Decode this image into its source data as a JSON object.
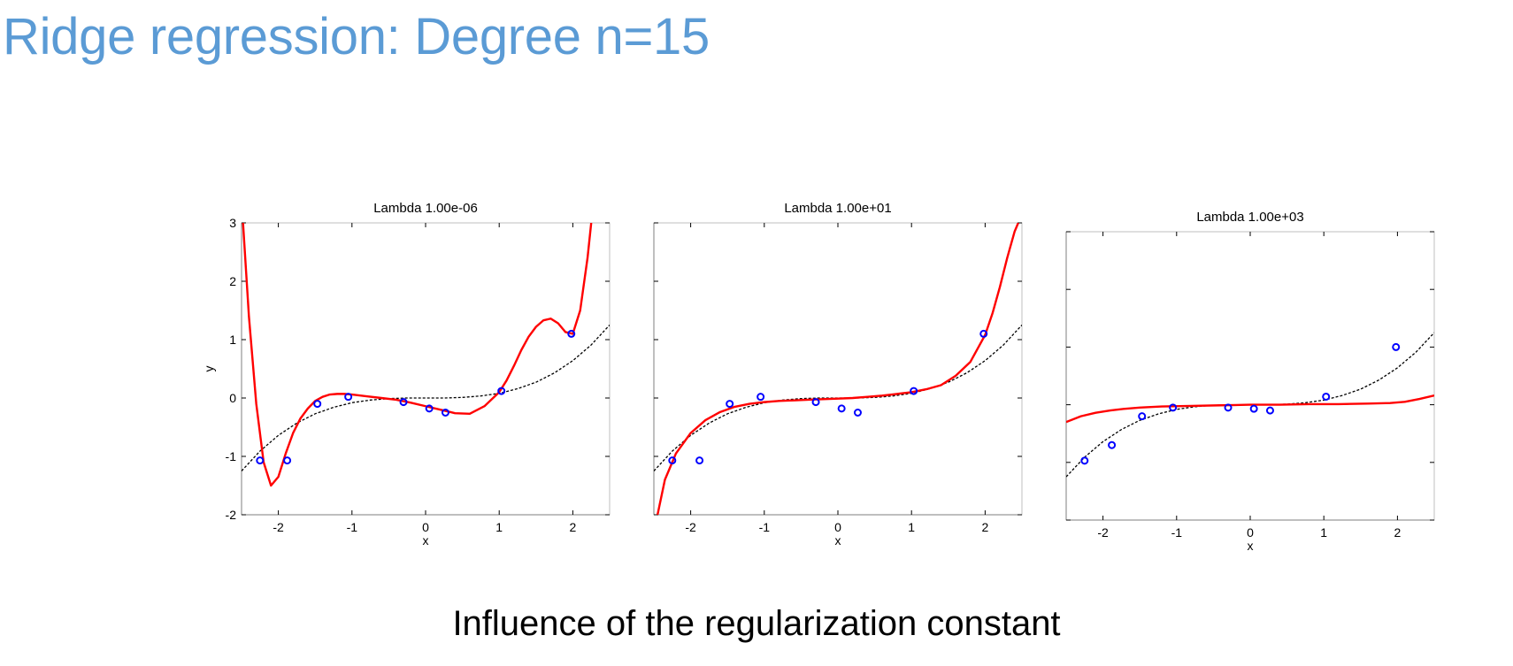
{
  "slide": {
    "title": "Ridge regression: Degree n=15",
    "caption": "Influence of the regularization constant"
  },
  "colors": {
    "title": "#5B9BD5",
    "fit_curve": "#FF0000",
    "true_curve": "#000000",
    "data_points": "#0000FF"
  },
  "chart_data": [
    {
      "type": "line",
      "title": "Lambda 1.00e-06",
      "xlabel": "x",
      "ylabel": "y",
      "xlim": [
        -2.5,
        2.5
      ],
      "ylim": [
        -2,
        3
      ],
      "xticks": [
        -2,
        -1,
        0,
        1,
        2
      ],
      "yticks": [
        -2,
        -1,
        0,
        1,
        2,
        3
      ],
      "show_ytick_labels": true,
      "grid": false,
      "series": [
        {
          "style": "dashed",
          "x": [
            -2.5,
            -2.25,
            -2.0,
            -1.75,
            -1.5,
            -1.25,
            -1.0,
            -0.75,
            -0.5,
            -0.25,
            0.0,
            0.25,
            0.5,
            0.75,
            1.0,
            1.25,
            1.5,
            1.75,
            2.0,
            2.25,
            2.5
          ],
          "y": [
            -1.25,
            -0.91,
            -0.64,
            -0.43,
            -0.27,
            -0.16,
            -0.08,
            -0.035,
            -0.01,
            0.0,
            0.0,
            0.0,
            0.01,
            0.035,
            0.08,
            0.16,
            0.27,
            0.43,
            0.64,
            0.91,
            1.25
          ]
        },
        {
          "style": "solid",
          "x": [
            -2.48,
            -2.4,
            -2.3,
            -2.2,
            -2.1,
            -2.0,
            -1.9,
            -1.8,
            -1.7,
            -1.6,
            -1.5,
            -1.4,
            -1.3,
            -1.2,
            -1.1,
            -1.0,
            -0.8,
            -0.6,
            -0.4,
            -0.2,
            0.0,
            0.2,
            0.4,
            0.6,
            0.8,
            1.0,
            1.1,
            1.2,
            1.3,
            1.4,
            1.5,
            1.6,
            1.7,
            1.8,
            1.9,
            2.0,
            2.1,
            2.2,
            2.25
          ],
          "y": [
            3.0,
            1.4,
            -0.1,
            -1.1,
            -1.5,
            -1.35,
            -0.95,
            -0.6,
            -0.35,
            -0.18,
            -0.05,
            0.02,
            0.06,
            0.07,
            0.07,
            0.06,
            0.03,
            0.0,
            -0.03,
            -0.08,
            -0.14,
            -0.2,
            -0.26,
            -0.27,
            -0.14,
            0.1,
            0.3,
            0.55,
            0.82,
            1.05,
            1.22,
            1.33,
            1.36,
            1.28,
            1.13,
            1.1,
            1.5,
            2.4,
            3.0
          ]
        },
        {
          "style": "markers",
          "x": [
            -2.25,
            -1.88,
            -1.47,
            -1.05,
            -0.3,
            0.05,
            0.27,
            1.03,
            1.98
          ],
          "y": [
            -1.07,
            -1.07,
            -0.1,
            0.02,
            -0.07,
            -0.18,
            -0.25,
            0.12,
            1.1
          ]
        }
      ]
    },
    {
      "type": "line",
      "title": "Lambda 1.00e+01",
      "xlabel": "x",
      "ylabel": "",
      "xlim": [
        -2.5,
        2.5
      ],
      "ylim": [
        -2,
        3
      ],
      "xticks": [
        -2,
        -1,
        0,
        1,
        2
      ],
      "yticks": [
        -2,
        -1,
        0,
        1,
        2,
        3
      ],
      "show_ytick_labels": false,
      "grid": false,
      "series": [
        {
          "style": "dashed",
          "x": [
            -2.5,
            -2.25,
            -2.0,
            -1.75,
            -1.5,
            -1.25,
            -1.0,
            -0.75,
            -0.5,
            -0.25,
            0.0,
            0.25,
            0.5,
            0.75,
            1.0,
            1.25,
            1.5,
            1.75,
            2.0,
            2.25,
            2.5
          ],
          "y": [
            -1.25,
            -0.91,
            -0.64,
            -0.43,
            -0.27,
            -0.16,
            -0.08,
            -0.035,
            -0.01,
            0.0,
            0.0,
            0.0,
            0.01,
            0.035,
            0.08,
            0.16,
            0.27,
            0.43,
            0.64,
            0.91,
            1.25
          ]
        },
        {
          "style": "solid",
          "x": [
            -2.45,
            -2.35,
            -2.2,
            -2.0,
            -1.8,
            -1.6,
            -1.4,
            -1.2,
            -1.0,
            -0.8,
            -0.6,
            -0.4,
            -0.2,
            0.0,
            0.2,
            0.4,
            0.6,
            0.8,
            1.0,
            1.2,
            1.4,
            1.6,
            1.8,
            2.0,
            2.1,
            2.2,
            2.3,
            2.4,
            2.45
          ],
          "y": [
            -2.0,
            -1.4,
            -0.95,
            -0.6,
            -0.38,
            -0.24,
            -0.15,
            -0.1,
            -0.07,
            -0.05,
            -0.04,
            -0.03,
            -0.02,
            -0.01,
            0.0,
            0.02,
            0.04,
            0.07,
            0.1,
            0.15,
            0.22,
            0.38,
            0.62,
            1.08,
            1.45,
            1.9,
            2.4,
            2.85,
            3.0
          ]
        },
        {
          "style": "markers",
          "x": [
            -2.25,
            -1.88,
            -1.47,
            -1.05,
            -0.3,
            0.05,
            0.27,
            1.03,
            1.98
          ],
          "y": [
            -1.07,
            -1.07,
            -0.1,
            0.02,
            -0.07,
            -0.18,
            -0.25,
            0.12,
            1.1
          ]
        }
      ]
    },
    {
      "type": "line",
      "title": "Lambda 1.00e+03",
      "xlabel": "x",
      "ylabel": "",
      "xlim": [
        -2.5,
        2.5
      ],
      "ylim": [
        -2,
        3
      ],
      "xticks": [
        -2,
        -1,
        0,
        1,
        2
      ],
      "yticks": [
        -2,
        -1,
        0,
        1,
        2,
        3
      ],
      "show_ytick_labels": false,
      "grid": false,
      "series": [
        {
          "style": "dashed",
          "x": [
            -2.5,
            -2.25,
            -2.0,
            -1.75,
            -1.5,
            -1.25,
            -1.0,
            -0.75,
            -0.5,
            -0.25,
            0.0,
            0.25,
            0.5,
            0.75,
            1.0,
            1.25,
            1.5,
            1.75,
            2.0,
            2.25,
            2.5
          ],
          "y": [
            -1.25,
            -0.91,
            -0.64,
            -0.43,
            -0.27,
            -0.16,
            -0.08,
            -0.035,
            -0.01,
            0.0,
            0.0,
            0.0,
            0.01,
            0.035,
            0.08,
            0.16,
            0.27,
            0.43,
            0.64,
            0.91,
            1.25
          ]
        },
        {
          "style": "solid",
          "x": [
            -2.5,
            -2.3,
            -2.1,
            -1.9,
            -1.7,
            -1.5,
            -1.2,
            -0.8,
            -0.4,
            0.0,
            0.4,
            0.8,
            1.2,
            1.6,
            1.9,
            2.1,
            2.3,
            2.5
          ],
          "y": [
            -0.3,
            -0.2,
            -0.14,
            -0.1,
            -0.07,
            -0.05,
            -0.03,
            -0.02,
            -0.01,
            0.0,
            0.0,
            0.01,
            0.01,
            0.02,
            0.03,
            0.05,
            0.1,
            0.16
          ]
        },
        {
          "style": "markers",
          "x": [
            -2.25,
            -1.88,
            -1.47,
            -1.05,
            -0.3,
            0.05,
            0.27,
            1.03,
            1.98
          ],
          "y": [
            -0.97,
            -0.7,
            -0.2,
            -0.05,
            -0.05,
            -0.07,
            -0.1,
            0.14,
            1.0
          ]
        }
      ]
    }
  ]
}
